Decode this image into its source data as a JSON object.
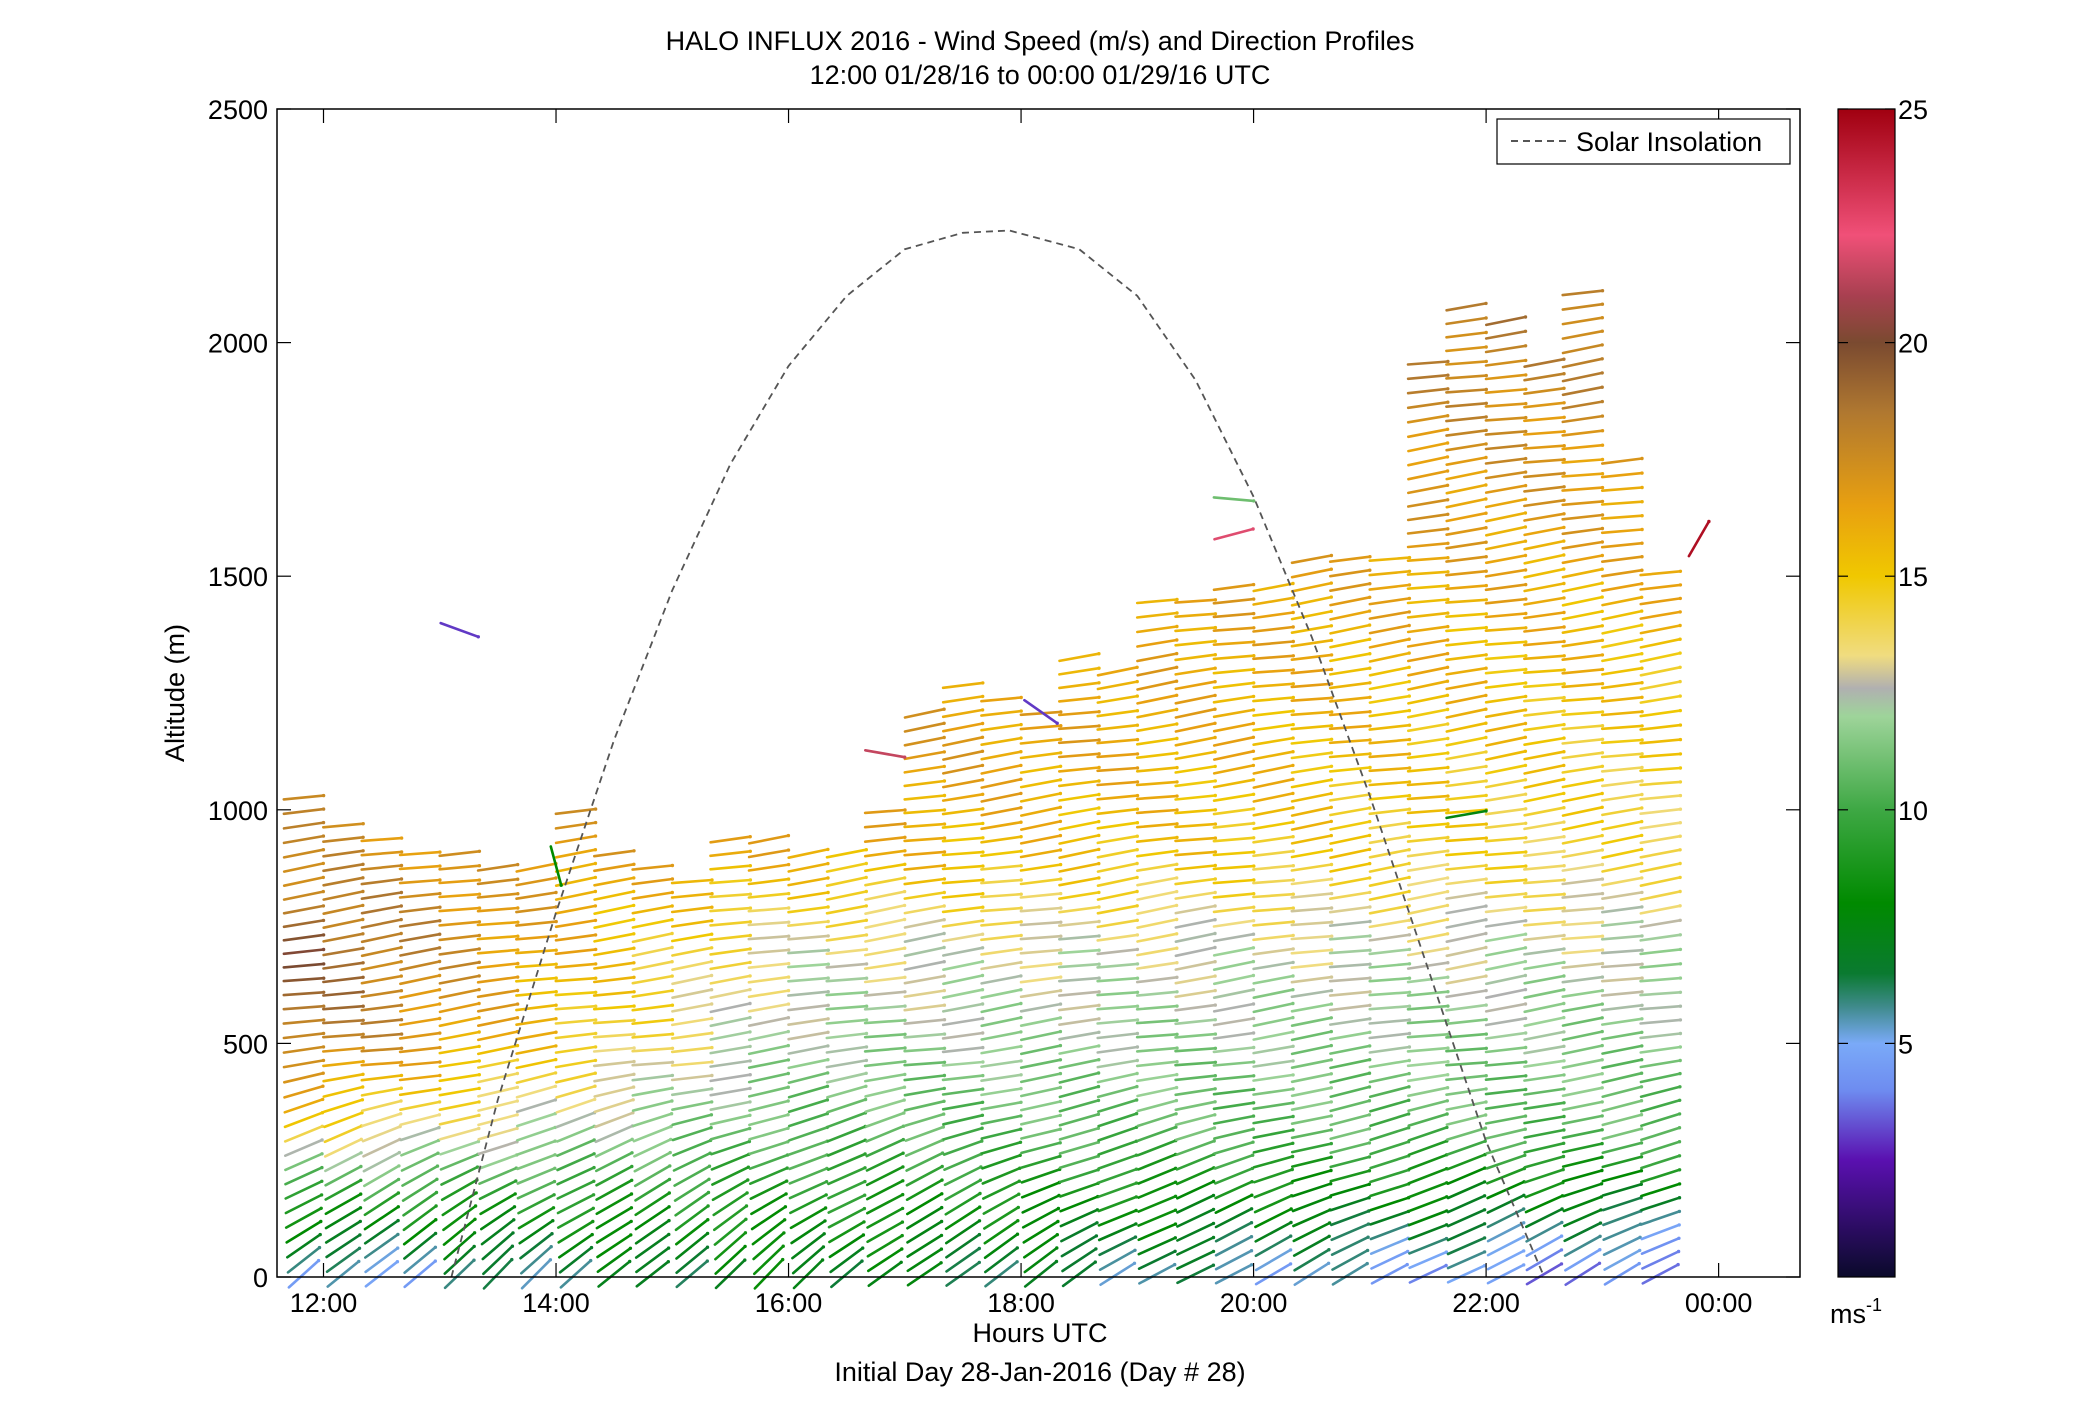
{
  "chart_data": {
    "type": "wind_barb_profile",
    "title": "HALO INFLUX 2016 - Wind Speed (m/s) and Direction Profiles",
    "subtitle": "12:00 01/28/16 to 00:00 01/29/16  UTC",
    "xlabel": "Hours UTC",
    "xlabel2": "Initial Day 28-Jan-2016 (Day # 28)",
    "ylabel": "Altitude (m)",
    "xlim_hours": [
      11.6,
      24.7
    ],
    "ylim": [
      0,
      2500
    ],
    "x_ticks": [
      {
        "value": 12,
        "label": "12:00"
      },
      {
        "value": 14,
        "label": "14:00"
      },
      {
        "value": 16,
        "label": "16:00"
      },
      {
        "value": 18,
        "label": "18:00"
      },
      {
        "value": 20,
        "label": "20:00"
      },
      {
        "value": 22,
        "label": "22:00"
      },
      {
        "value": 24,
        "label": "00:00"
      }
    ],
    "y_ticks": [
      {
        "value": 0,
        "label": "0"
      },
      {
        "value": 500,
        "label": "500"
      },
      {
        "value": 1000,
        "label": "1000"
      },
      {
        "value": 1500,
        "label": "1500"
      },
      {
        "value": 2000,
        "label": "2000"
      },
      {
        "value": 2500,
        "label": "2500"
      }
    ],
    "legend": {
      "label": "Solar Insolation",
      "position": "top-right",
      "style": "dashed",
      "color": "#555555"
    },
    "solar_insolation": {
      "points": [
        [
          13.1,
          0
        ],
        [
          13.5,
          380
        ],
        [
          14.0,
          780
        ],
        [
          14.5,
          1150
        ],
        [
          15.0,
          1470
        ],
        [
          15.5,
          1740
        ],
        [
          16.0,
          1950
        ],
        [
          16.5,
          2100
        ],
        [
          17.0,
          2200
        ],
        [
          17.5,
          2235
        ],
        [
          17.9,
          2240
        ],
        [
          18.5,
          2200
        ],
        [
          19.0,
          2100
        ],
        [
          19.5,
          1920
        ],
        [
          20.0,
          1670
        ],
        [
          20.5,
          1370
        ],
        [
          21.0,
          1030
        ],
        [
          21.5,
          660
        ],
        [
          22.0,
          290
        ],
        [
          22.5,
          0
        ]
      ]
    },
    "colorbar": {
      "range": [
        0,
        25
      ],
      "ticks": [
        {
          "value": 5,
          "label": "5"
        },
        {
          "value": 10,
          "label": "10"
        },
        {
          "value": 15,
          "label": "15"
        },
        {
          "value": 20,
          "label": "20"
        },
        {
          "value": 25,
          "label": "25"
        }
      ],
      "unit": "ms",
      "unit_exp": "-1",
      "stops": [
        {
          "v": 0.0,
          "c": "#0a0a2a"
        },
        {
          "v": 2.5,
          "c": "#5a10b0"
        },
        {
          "v": 4.0,
          "c": "#6e8cf0"
        },
        {
          "v": 5.0,
          "c": "#7aaaf8"
        },
        {
          "v": 5.8,
          "c": "#3e8a8a"
        },
        {
          "v": 6.5,
          "c": "#0a7a30"
        },
        {
          "v": 8.0,
          "c": "#008a00"
        },
        {
          "v": 10.0,
          "c": "#3ea844"
        },
        {
          "v": 12.0,
          "c": "#9ed49a"
        },
        {
          "v": 12.6,
          "c": "#b0b0b0"
        },
        {
          "v": 13.3,
          "c": "#f0dc80"
        },
        {
          "v": 15.0,
          "c": "#f0c800"
        },
        {
          "v": 16.5,
          "c": "#e8a010"
        },
        {
          "v": 18.5,
          "c": "#b07830"
        },
        {
          "v": 20.0,
          "c": "#7a4a30"
        },
        {
          "v": 21.0,
          "c": "#a84050"
        },
        {
          "v": 22.3,
          "c": "#f05078"
        },
        {
          "v": 25.0,
          "c": "#a00010"
        }
      ]
    },
    "profiles": {
      "interval_hours": 0.333,
      "altitude_step_m": 30,
      "columns": [
        {
          "t": 11.83,
          "top": 1040
        },
        {
          "t": 12.17,
          "top": 980
        },
        {
          "t": 12.5,
          "top": 940
        },
        {
          "t": 12.83,
          "top": 900
        },
        {
          "t": 13.17,
          "top": 905
        },
        {
          "t": 13.5,
          "top": 870
        },
        {
          "t": 13.83,
          "top": 870
        },
        {
          "t": 14.17,
          "top": 1010
        },
        {
          "t": 14.5,
          "top": 905
        },
        {
          "t": 14.83,
          "top": 870
        },
        {
          "t": 15.17,
          "top": 860
        },
        {
          "t": 15.5,
          "top": 940
        },
        {
          "t": 15.83,
          "top": 940
        },
        {
          "t": 16.17,
          "top": 900
        },
        {
          "t": 16.5,
          "top": 900
        },
        {
          "t": 16.83,
          "top": 1010
        },
        {
          "t": 17.17,
          "top": 1200
        },
        {
          "t": 17.5,
          "top": 1285
        },
        {
          "t": 17.83,
          "top": 1240
        },
        {
          "t": 18.17,
          "top": 1200
        },
        {
          "t": 18.5,
          "top": 1330
        },
        {
          "t": 18.83,
          "top": 1290
        },
        {
          "t": 19.17,
          "top": 1450
        },
        {
          "t": 19.5,
          "top": 1450
        },
        {
          "t": 19.83,
          "top": 1490
        },
        {
          "t": 20.17,
          "top": 1490
        },
        {
          "t": 20.5,
          "top": 1530
        },
        {
          "t": 20.83,
          "top": 1530
        },
        {
          "t": 21.17,
          "top": 1530
        },
        {
          "t": 21.5,
          "top": 1950
        },
        {
          "t": 21.83,
          "top": 2085
        },
        {
          "t": 22.17,
          "top": 2040
        },
        {
          "t": 22.5,
          "top": 1960
        },
        {
          "t": 22.83,
          "top": 2100
        },
        {
          "t": 23.17,
          "top": 1750
        },
        {
          "t": 23.5,
          "top": 1500
        }
      ],
      "speed_profile": [
        {
          "h": 0,
          "t_early": 4.5,
          "t_mid": 7.5,
          "t_late": 3.5
        },
        {
          "h": 150,
          "t_early": 9.0,
          "t_mid": 9.0,
          "t_late": 7.0
        },
        {
          "h": 300,
          "t_early": 14.0,
          "t_mid": 10.5,
          "t_late": 10.5
        },
        {
          "h": 500,
          "t_early": 18.5,
          "t_mid": 12.0,
          "t_late": 11.5
        },
        {
          "h": 700,
          "t_early": 19.5,
          "t_mid": 13.0,
          "t_late": 12.5
        },
        {
          "h": 900,
          "t_early": 17.5,
          "t_mid": 16.0,
          "t_late": 14.0
        },
        {
          "h": 1100,
          "t_early": 17.0,
          "t_mid": 17.0,
          "t_late": 14.5
        },
        {
          "h": 1500,
          "t_early": 17.0,
          "t_mid": 17.0,
          "t_late": 16.0
        },
        {
          "h": 2100,
          "t_early": 17.0,
          "t_mid": 17.5,
          "t_late": 18.5
        }
      ],
      "outliers": [
        {
          "t": 13.17,
          "h": 1385,
          "speed": 3.0,
          "dir": 20
        },
        {
          "t": 14.0,
          "h": 880,
          "speed": 8.0,
          "dir": 75
        },
        {
          "t": 16.83,
          "h": 1120,
          "speed": 21.5,
          "dir": 10
        },
        {
          "t": 18.17,
          "h": 1210,
          "speed": 3.0,
          "dir": 35
        },
        {
          "t": 19.83,
          "h": 1590,
          "speed": 22.0,
          "dir": -15
        },
        {
          "t": 19.83,
          "h": 1665,
          "speed": 11.0,
          "dir": 5
        },
        {
          "t": 21.83,
          "h": 990,
          "speed": 7.5,
          "dir": -10
        },
        {
          "t": 23.83,
          "h": 1580,
          "speed": 24.5,
          "dir": -60
        }
      ]
    }
  }
}
